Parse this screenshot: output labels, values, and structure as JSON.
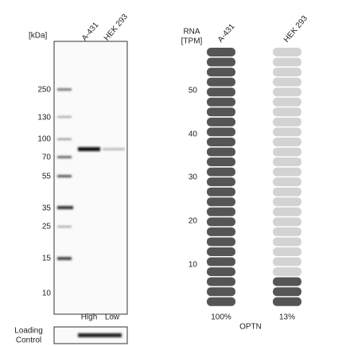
{
  "blot": {
    "unit": "[kDa]",
    "lanes": [
      "A-431",
      "HEK 293"
    ],
    "markers": [
      "250",
      "130",
      "100",
      "70",
      "55",
      "35",
      "25",
      "15",
      "10"
    ],
    "levels": [
      "High",
      "Low"
    ],
    "loading_control": [
      "Loading",
      "Control"
    ]
  },
  "rna": {
    "axis_label": [
      "RNA",
      "[TPM]"
    ],
    "scale": [
      "50",
      "40",
      "30",
      "20",
      "10"
    ],
    "columns": [
      {
        "name": "A-431",
        "percent": "100%"
      },
      {
        "name": "HEK 293",
        "percent": "13%"
      }
    ],
    "gene": "OPTN"
  }
}
